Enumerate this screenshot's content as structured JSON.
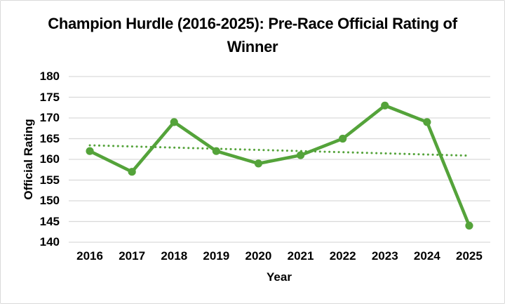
{
  "chart_data": {
    "type": "line",
    "title": "Champion Hurdle (2016-2025): Pre-Race Official Rating of Winner",
    "xlabel": "Year",
    "ylabel": "Official Rating",
    "categories": [
      "2016",
      "2017",
      "2018",
      "2019",
      "2020",
      "2021",
      "2022",
      "2023",
      "2024",
      "2025"
    ],
    "values": [
      162,
      157,
      169,
      162,
      159,
      161,
      165,
      173,
      169,
      144
    ],
    "trendline": {
      "type": "linear",
      "style": "dotted",
      "start_value": 163.4,
      "end_value": 160.9
    },
    "ylim": [
      140,
      180
    ],
    "yticks": [
      140,
      145,
      150,
      155,
      160,
      165,
      170,
      175,
      180
    ],
    "grid": "horizontal",
    "legend_position": "none",
    "colors": {
      "series": "#54a33a",
      "trendline": "#54a33a",
      "gridline": "#d9d9d9",
      "text": "#000000",
      "background": "#ffffff",
      "border": "#d9d9d9"
    }
  }
}
